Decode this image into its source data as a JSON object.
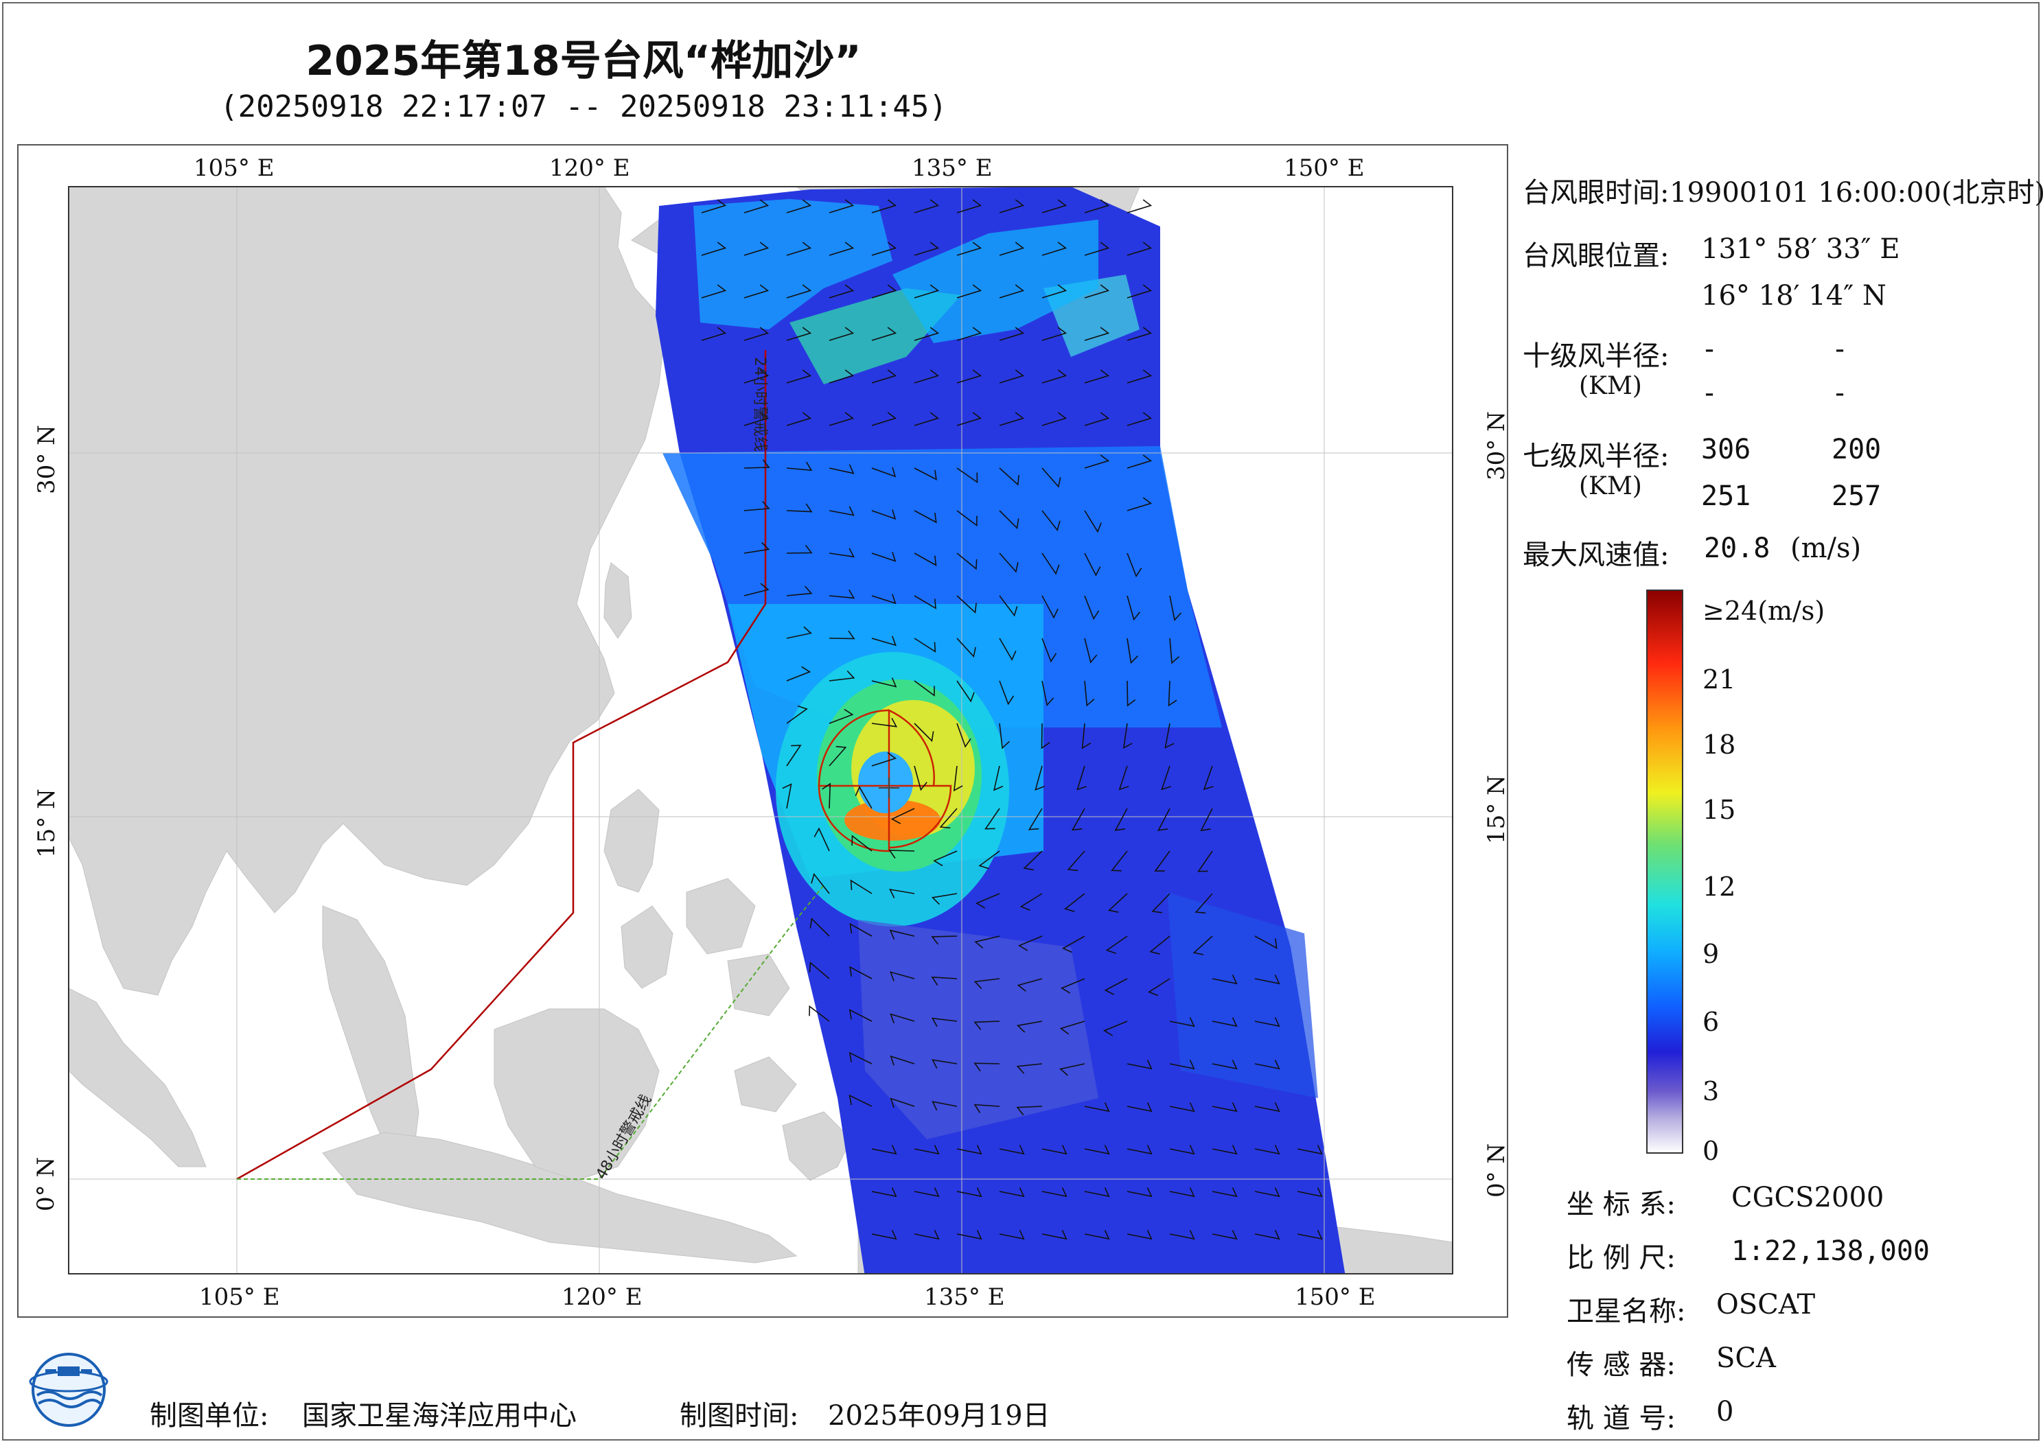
{
  "title": "2025年第18号台风“桦加沙”",
  "subtitle": "(20250918 22:17:07 -- 20250918 23:11:45)",
  "map": {
    "lon_ticks_top": [
      "105° E",
      "120° E",
      "135° E",
      "150° E"
    ],
    "lon_ticks_bottom": [
      "105° E",
      "120° E",
      "135° E",
      "150° E"
    ],
    "lat_ticks_left": [
      "30° N",
      "15° N",
      "0° N"
    ],
    "lat_ticks_right": [
      "30° N",
      "15° N",
      "0° N"
    ],
    "line_24h": "24小时警戒线",
    "line_48h": "48小时警戒线",
    "colors": {
      "land": "#d6d6d6",
      "ocean": "#ffffff",
      "warning_24h": "#b00000",
      "warning_48h": "#55aa33",
      "wind_radius": "#cc2200"
    }
  },
  "info": {
    "eye_time_label": "台风眼时间:",
    "eye_time_value": "19900101 16:00:00(北京时)",
    "eye_pos_label": "台风眼位置:",
    "eye_lon": "131° 58′ 33″ E",
    "eye_lat": "16° 18′ 14″ N",
    "r10_label": "十级风半径:",
    "r10_unit": "(KM)",
    "r10_values": [
      "-",
      "-",
      "-",
      "-"
    ],
    "r7_label": "七级风半径:",
    "r7_unit": "(KM)",
    "r7_values": [
      "306",
      "200",
      "251",
      "257"
    ],
    "max_wind_label": "最大风速值:",
    "max_wind_value": "20.8",
    "max_wind_unit": "(m/s)"
  },
  "colorbar": {
    "labels": [
      "≥24(m/s)",
      "21",
      "18",
      "15",
      "12",
      "9",
      "6",
      "3",
      "0"
    ],
    "stops": [
      "#ffffff",
      "#b8b0e0",
      "#6a5acd",
      "#2020d8",
      "#1060ff",
      "#10b0ff",
      "#20e0e0",
      "#70e070",
      "#f0f020",
      "#ff9a10",
      "#ff2a10",
      "#8a0000"
    ]
  },
  "meta": {
    "crs_label": "坐 标 系:",
    "crs_value": "CGCS2000",
    "scale_label": "比 例 尺:",
    "scale_value": "1:22,138,000",
    "satellite_label": "卫星名称:",
    "satellite_value": "OSCAT",
    "sensor_label": "传 感 器:",
    "sensor_value": "SCA",
    "orbit_label": "轨 道 号:",
    "orbit_value": "0"
  },
  "footer": {
    "unit_label": "制图单位:",
    "unit_value": "国家卫星海洋应用中心",
    "date_label": "制图时间:",
    "date_value": "2025年09月19日"
  }
}
